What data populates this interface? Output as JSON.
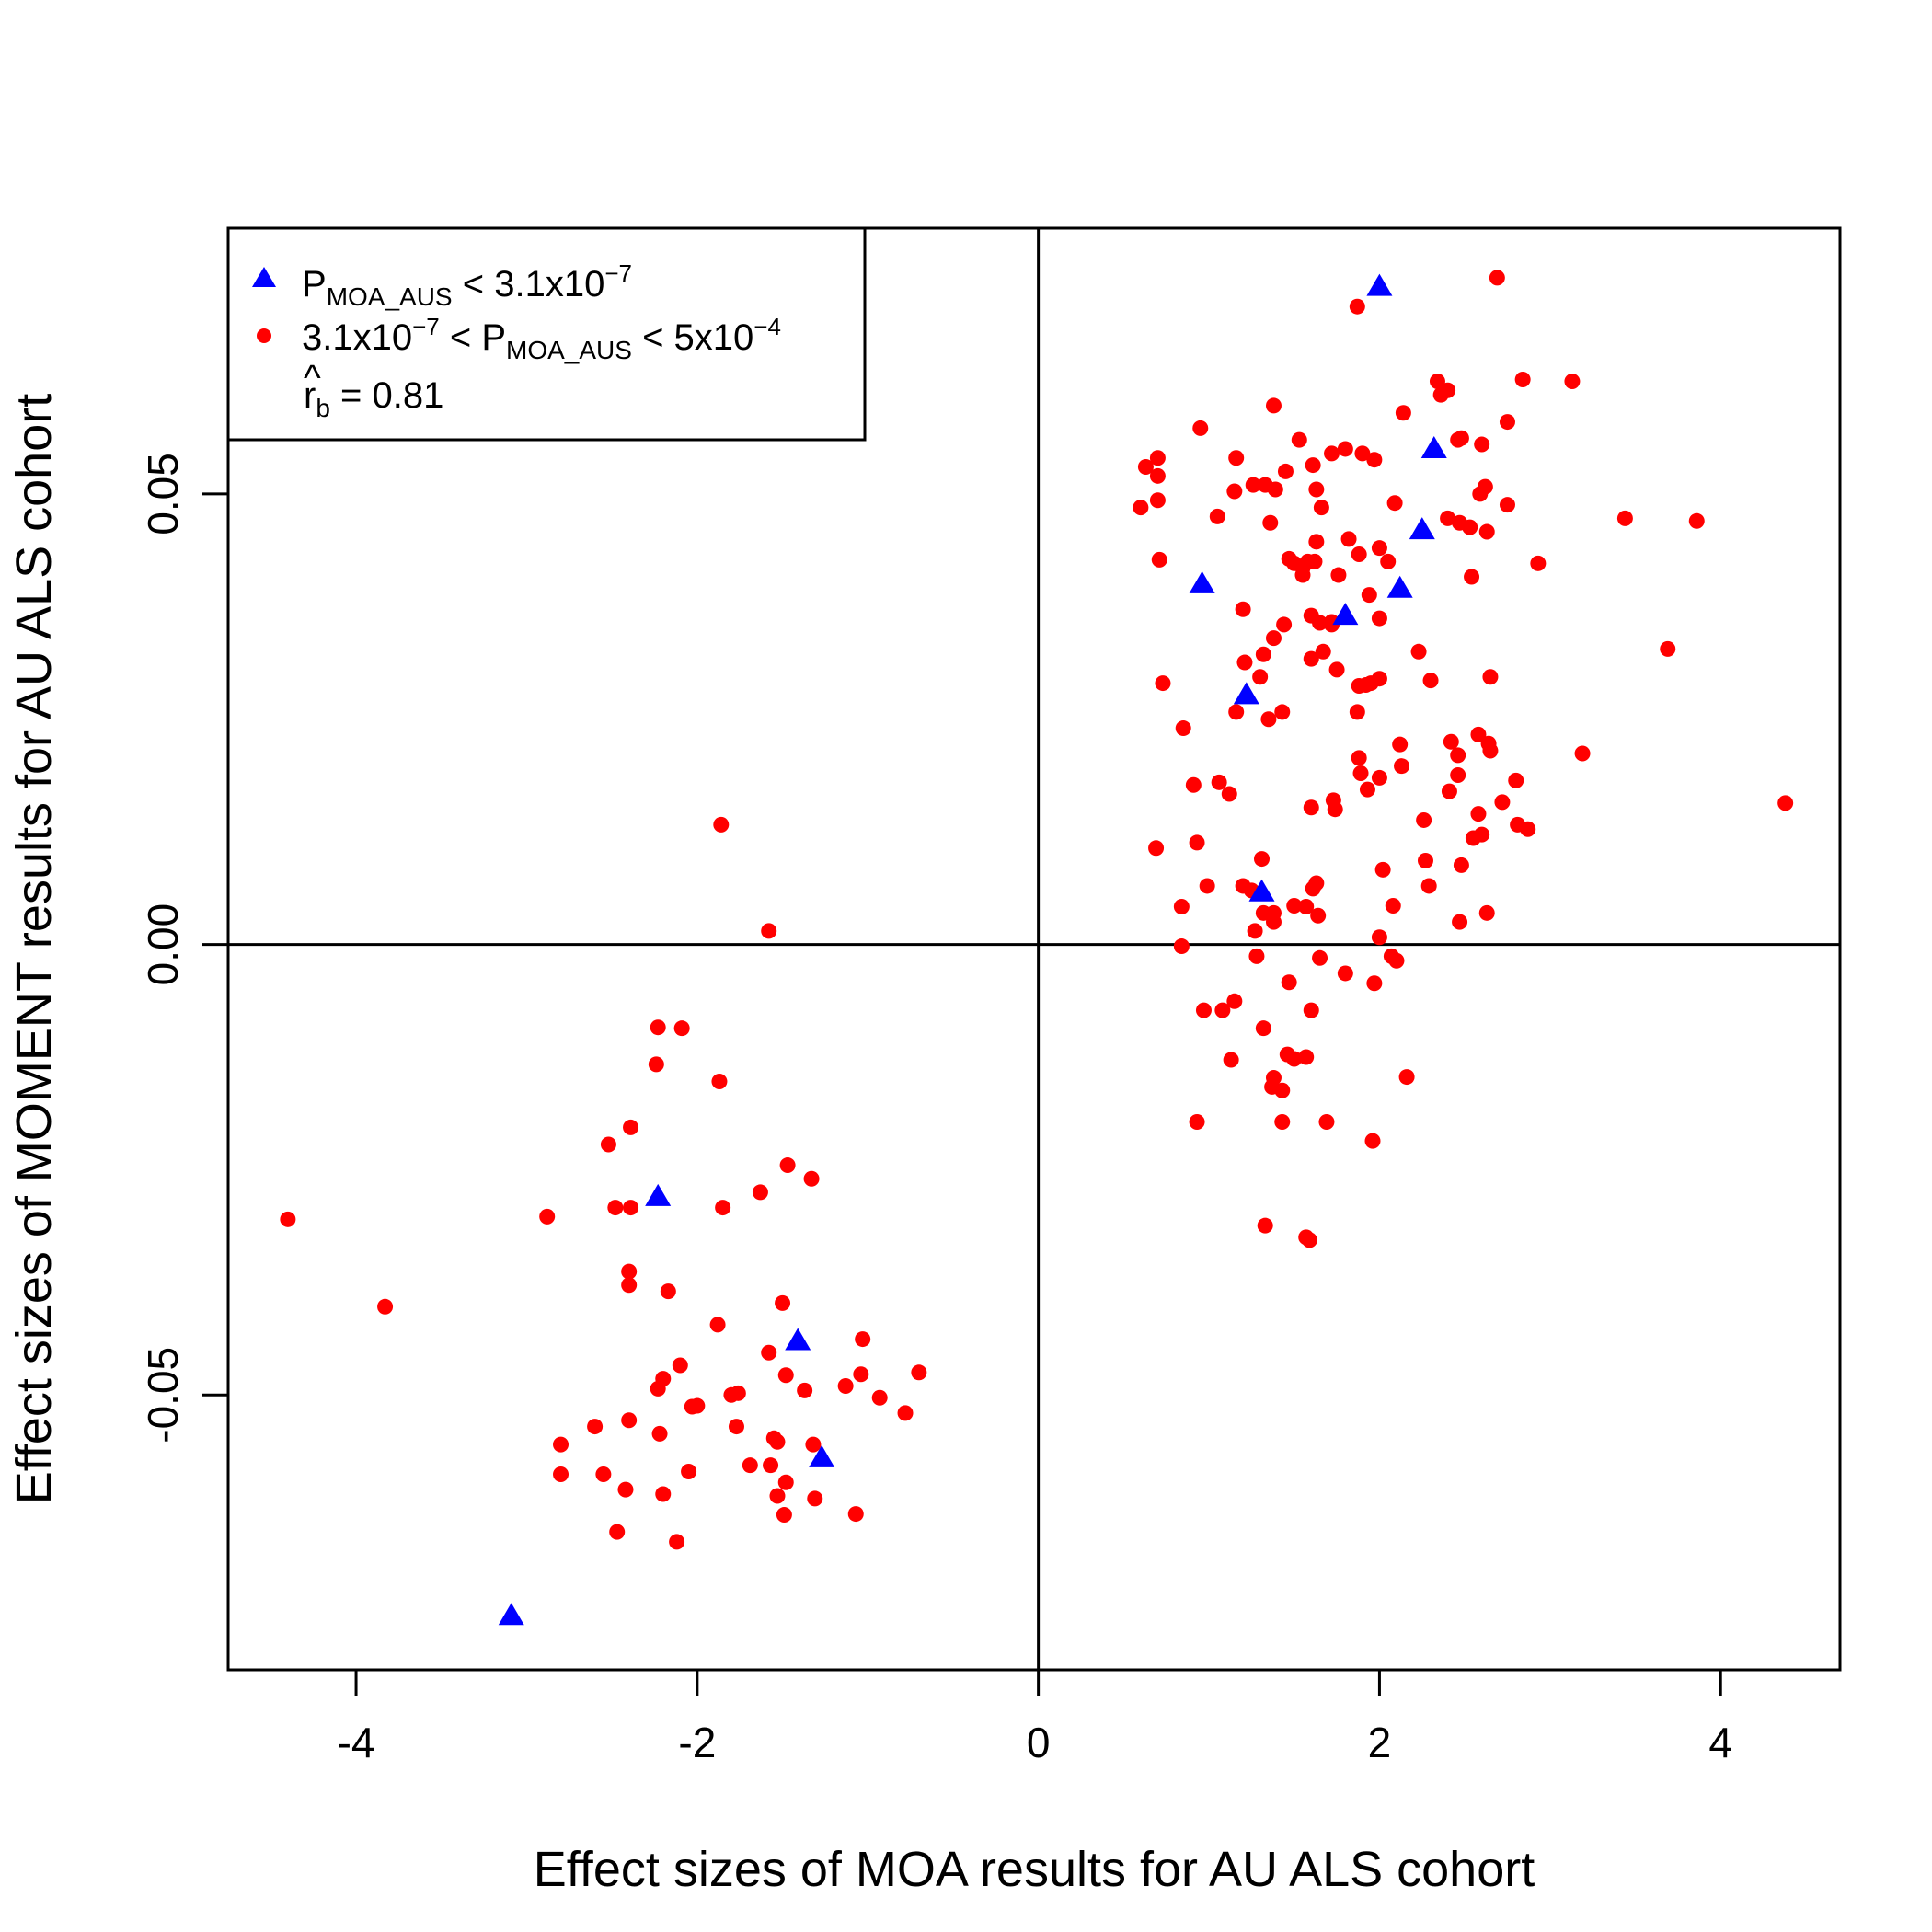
{
  "chart_data": {
    "type": "scatter",
    "xlabel": "Effect sizes of  MOA results for AU ALS cohort",
    "ylabel": "Effect sizes of MOMENT results for AU ALS cohort",
    "xlim": [
      -4.75,
      4.7
    ],
    "ylim": [
      -0.0805,
      0.0795
    ],
    "x_ticks": [
      -4,
      -2,
      0,
      2,
      4
    ],
    "x_tick_labels": [
      "-4",
      "-2",
      "0",
      "2",
      "4"
    ],
    "y_ticks": [
      -0.05,
      0.0,
      0.05
    ],
    "y_tick_labels": [
      "-0.05",
      "0.00",
      "0.05"
    ],
    "reference_lines": {
      "x": 0,
      "y": 0
    },
    "grid": false,
    "legend": {
      "position": "top-left",
      "entries": [
        {
          "marker": "triangle",
          "color": "#0000ff",
          "base": "P",
          "sub": "MOA_AUS",
          "after": " < 3.1x10",
          "sup": "−7",
          "before": ""
        },
        {
          "marker": "circle",
          "color": "#ff0000",
          "before": "3.1x10",
          "before_sup": "−7",
          "mid": " < P",
          "sub": "MOA_AUS",
          "after": " < 5x10",
          "sup": "−4"
        }
      ],
      "stat_symbol": "r",
      "stat_sub": "b",
      "stat_value": " = 0.81"
    },
    "series": [
      {
        "name": "P_MOA_AUS < 3.1x10^-7",
        "marker": "triangle",
        "color": "#0000ff",
        "points": [
          [
            2.0,
            0.073
          ],
          [
            2.32,
            0.055
          ],
          [
            2.25,
            0.046
          ],
          [
            0.96,
            0.04
          ],
          [
            2.12,
            0.0395
          ],
          [
            1.8,
            0.0365
          ],
          [
            1.22,
            0.0277
          ],
          [
            1.31,
            0.0058
          ],
          [
            -2.23,
            -0.028
          ],
          [
            -1.41,
            -0.044
          ],
          [
            -1.27,
            -0.057
          ],
          [
            -3.09,
            -0.0745
          ]
        ]
      },
      {
        "name": "3.1x10^-7 < P_MOA_AUS < 5x10^-4",
        "marker": "circle",
        "color": "#ff0000",
        "points": [
          [
            2.69,
            0.074
          ],
          [
            1.87,
            0.0708
          ],
          [
            3.13,
            0.0625
          ],
          [
            2.84,
            0.0627
          ],
          [
            2.34,
            0.0625
          ],
          [
            2.36,
            0.061
          ],
          [
            2.4,
            0.0615
          ],
          [
            1.38,
            0.0598
          ],
          [
            2.14,
            0.059
          ],
          [
            2.75,
            0.058
          ],
          [
            0.95,
            0.0573
          ],
          [
            1.53,
            0.056
          ],
          [
            1.8,
            0.055
          ],
          [
            1.9,
            0.0545
          ],
          [
            1.72,
            0.0545
          ],
          [
            1.97,
            0.0538
          ],
          [
            1.16,
            0.054
          ],
          [
            0.7,
            0.054
          ],
          [
            0.63,
            0.053
          ],
          [
            1.61,
            0.0532
          ],
          [
            1.45,
            0.0525
          ],
          [
            1.63,
            0.0505
          ],
          [
            2.48,
            0.0562
          ],
          [
            2.46,
            0.056
          ],
          [
            2.6,
            0.0555
          ],
          [
            0.7,
            0.052
          ],
          [
            1.26,
            0.051
          ],
          [
            1.33,
            0.051
          ],
          [
            1.39,
            0.0505
          ],
          [
            1.15,
            0.0503
          ],
          [
            2.62,
            0.0508
          ],
          [
            2.59,
            0.05
          ],
          [
            2.09,
            0.049
          ],
          [
            2.75,
            0.0488
          ],
          [
            0.6,
            0.0485
          ],
          [
            0.7,
            0.0493
          ],
          [
            1.66,
            0.0485
          ],
          [
            1.05,
            0.0475
          ],
          [
            1.36,
            0.0468
          ],
          [
            3.44,
            0.0473
          ],
          [
            3.86,
            0.047
          ],
          [
            2.4,
            0.0473
          ],
          [
            2.47,
            0.0468
          ],
          [
            2.53,
            0.0463
          ],
          [
            2.63,
            0.0458
          ],
          [
            1.82,
            0.045
          ],
          [
            2.0,
            0.044
          ],
          [
            1.63,
            0.0447
          ],
          [
            1.5,
            0.0423
          ],
          [
            1.55,
            0.0418
          ],
          [
            1.58,
            0.0425
          ],
          [
            1.47,
            0.0428
          ],
          [
            1.62,
            0.0425
          ],
          [
            1.88,
            0.0433
          ],
          [
            2.05,
            0.0425
          ],
          [
            2.93,
            0.0423
          ],
          [
            0.71,
            0.0427
          ],
          [
            1.55,
            0.041
          ],
          [
            2.54,
            0.0408
          ],
          [
            1.76,
            0.041
          ],
          [
            1.94,
            0.0388
          ],
          [
            1.2,
            0.0372
          ],
          [
            1.6,
            0.0365
          ],
          [
            1.44,
            0.0355
          ],
          [
            1.65,
            0.0357
          ],
          [
            1.72,
            0.0358
          ],
          [
            2.0,
            0.0362
          ],
          [
            1.72,
            0.0355
          ],
          [
            1.38,
            0.034
          ],
          [
            3.69,
            0.0328
          ],
          [
            2.23,
            0.0325
          ],
          [
            1.67,
            0.0325
          ],
          [
            1.32,
            0.0322
          ],
          [
            1.6,
            0.0317
          ],
          [
            1.21,
            0.0313
          ],
          [
            1.75,
            0.0305
          ],
          [
            0.73,
            0.029
          ],
          [
            1.3,
            0.0297
          ],
          [
            2.65,
            0.0297
          ],
          [
            2.3,
            0.0293
          ],
          [
            2.0,
            0.0295
          ],
          [
            1.95,
            0.029
          ],
          [
            1.92,
            0.0288
          ],
          [
            1.88,
            0.0287
          ],
          [
            1.16,
            0.0258
          ],
          [
            1.35,
            0.025
          ],
          [
            1.43,
            0.0258
          ],
          [
            1.87,
            0.0258
          ],
          [
            0.85,
            0.024
          ],
          [
            2.58,
            0.0233
          ],
          [
            2.42,
            0.0225
          ],
          [
            2.12,
            0.0222
          ],
          [
            2.64,
            0.0223
          ],
          [
            2.65,
            0.0215
          ],
          [
            3.19,
            0.0212
          ],
          [
            2.46,
            0.021
          ],
          [
            1.88,
            0.0207
          ],
          [
            2.13,
            0.0198
          ],
          [
            2.8,
            0.0182
          ],
          [
            2.46,
            0.0188
          ],
          [
            1.89,
            0.019
          ],
          [
            2.0,
            0.0185
          ],
          [
            1.06,
            0.018
          ],
          [
            0.91,
            0.0177
          ],
          [
            2.41,
            0.017
          ],
          [
            1.93,
            0.0172
          ],
          [
            1.12,
            0.0167
          ],
          [
            2.72,
            0.0158
          ],
          [
            1.73,
            0.016
          ],
          [
            4.38,
            0.0157
          ],
          [
            1.6,
            0.0152
          ],
          [
            1.74,
            0.015
          ],
          [
            2.58,
            0.0145
          ],
          [
            2.26,
            0.0138
          ],
          [
            2.81,
            0.0133
          ],
          [
            2.87,
            0.0128
          ],
          [
            2.6,
            0.0122
          ],
          [
            2.55,
            0.0118
          ],
          [
            0.93,
            0.0113
          ],
          [
            0.69,
            0.0107
          ],
          [
            1.31,
            0.0095
          ],
          [
            2.27,
            0.0093
          ],
          [
            2.48,
            0.0088
          ],
          [
            2.02,
            0.0083
          ],
          [
            0.99,
            0.0065
          ],
          [
            1.63,
            0.0068
          ],
          [
            1.61,
            0.0062
          ],
          [
            2.29,
            0.0065
          ],
          [
            1.2,
            0.0065
          ],
          [
            1.25,
            0.006
          ],
          [
            1.57,
            0.0042
          ],
          [
            0.84,
            0.0042
          ],
          [
            2.08,
            0.0043
          ],
          [
            1.32,
            0.0035
          ],
          [
            1.38,
            0.0035
          ],
          [
            1.5,
            0.0043
          ],
          [
            1.64,
            0.0032
          ],
          [
            2.63,
            0.0035
          ],
          [
            1.38,
            0.0025
          ],
          [
            2.47,
            0.0025
          ],
          [
            1.27,
            0.0015
          ],
          [
            2.0,
            0.0008
          ],
          [
            0.84,
            -0.0002
          ],
          [
            2.07,
            -0.0013
          ],
          [
            2.1,
            -0.0018
          ],
          [
            1.65,
            -0.0015
          ],
          [
            1.28,
            -0.0013
          ],
          [
            1.8,
            -0.0032
          ],
          [
            1.47,
            -0.0042
          ],
          [
            1.97,
            -0.0043
          ],
          [
            1.15,
            -0.0063
          ],
          [
            0.97,
            -0.0073
          ],
          [
            1.08,
            -0.0073
          ],
          [
            1.6,
            -0.0073
          ],
          [
            1.32,
            -0.0093
          ],
          [
            1.46,
            -0.0122
          ],
          [
            1.5,
            -0.0127
          ],
          [
            1.57,
            -0.0125
          ],
          [
            1.13,
            -0.0128
          ],
          [
            2.16,
            -0.0147
          ],
          [
            1.38,
            -0.0148
          ],
          [
            1.37,
            -0.0158
          ],
          [
            1.43,
            -0.0162
          ],
          [
            0.93,
            -0.0197
          ],
          [
            1.43,
            -0.0197
          ],
          [
            1.69,
            -0.0197
          ],
          [
            1.96,
            -0.0218
          ],
          [
            1.33,
            -0.0312
          ],
          [
            1.57,
            -0.0325
          ],
          [
            1.59,
            -0.0328
          ],
          [
            -1.86,
            0.0133
          ],
          [
            -1.58,
            0.0015
          ],
          [
            -2.23,
            -0.0092
          ],
          [
            -2.09,
            -0.0093
          ],
          [
            -2.24,
            -0.0133
          ],
          [
            -1.87,
            -0.0152
          ],
          [
            -2.39,
            -0.0203
          ],
          [
            -2.52,
            -0.0222
          ],
          [
            -1.47,
            -0.0245
          ],
          [
            -1.33,
            -0.026
          ],
          [
            -1.63,
            -0.0275
          ],
          [
            -2.48,
            -0.0292
          ],
          [
            -2.39,
            -0.0292
          ],
          [
            -1.85,
            -0.0292
          ],
          [
            -2.88,
            -0.0302
          ],
          [
            -4.4,
            -0.0305
          ],
          [
            -2.4,
            -0.0363
          ],
          [
            -2.4,
            -0.0378
          ],
          [
            -2.17,
            -0.0385
          ],
          [
            -3.83,
            -0.0402
          ],
          [
            -1.5,
            -0.0398
          ],
          [
            -1.88,
            -0.0422
          ],
          [
            -1.03,
            -0.0438
          ],
          [
            -1.58,
            -0.0453
          ],
          [
            -2.1,
            -0.0467
          ],
          [
            -1.48,
            -0.0478
          ],
          [
            -1.04,
            -0.0477
          ],
          [
            -0.7,
            -0.0475
          ],
          [
            -2.2,
            -0.0482
          ],
          [
            -2.23,
            -0.0493
          ],
          [
            -1.13,
            -0.049
          ],
          [
            -1.8,
            -0.05
          ],
          [
            -1.76,
            -0.0498
          ],
          [
            -1.37,
            -0.0495
          ],
          [
            -0.93,
            -0.0503
          ],
          [
            -2.03,
            -0.0513
          ],
          [
            -2.0,
            -0.0512
          ],
          [
            -0.78,
            -0.052
          ],
          [
            -2.4,
            -0.0528
          ],
          [
            -2.6,
            -0.0535
          ],
          [
            -1.77,
            -0.0535
          ],
          [
            -2.22,
            -0.0543
          ],
          [
            -1.55,
            -0.0548
          ],
          [
            -1.53,
            -0.0552
          ],
          [
            -2.8,
            -0.0555
          ],
          [
            -1.32,
            -0.0555
          ],
          [
            -1.69,
            -0.0578
          ],
          [
            -1.57,
            -0.0578
          ],
          [
            -2.05,
            -0.0585
          ],
          [
            -2.8,
            -0.0588
          ],
          [
            -2.55,
            -0.0588
          ],
          [
            -1.48,
            -0.0597
          ],
          [
            -2.42,
            -0.0605
          ],
          [
            -2.2,
            -0.061
          ],
          [
            -1.53,
            -0.0612
          ],
          [
            -1.31,
            -0.0615
          ],
          [
            -1.07,
            -0.0632
          ],
          [
            -1.49,
            -0.0633
          ],
          [
            -2.47,
            -0.0652
          ],
          [
            -2.12,
            -0.0663
          ]
        ]
      }
    ]
  }
}
